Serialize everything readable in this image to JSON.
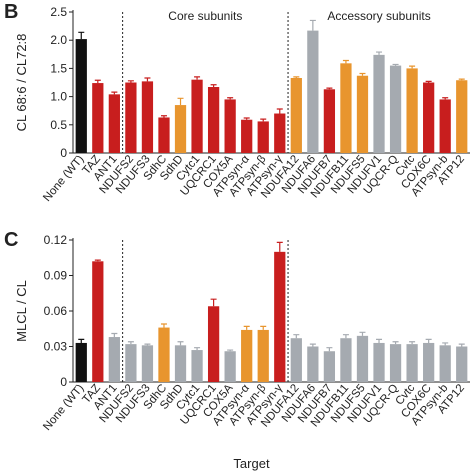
{
  "chart_data": [
    {
      "type": "bar",
      "panel": "B",
      "ylabel": "CL 68:6 / CL72:8",
      "annotations": [
        "Core subunits",
        "Accessory subunits"
      ],
      "categories": [
        "None (WT)",
        "TAZ",
        "ANT1",
        "NDUFS2",
        "NDUFS3",
        "SdhC",
        "SdhD",
        "Cytc1",
        "UQCRC1",
        "COX5A",
        "ATPsyn-α",
        "ATPsyn-β",
        "ATPsyn-γ",
        "NDUFA12",
        "NDUFA6",
        "NDUFB7",
        "NDUFB11",
        "NDUFS5",
        "NDUFV1",
        "UQCR-Q",
        "Cvtc",
        "COX6C",
        "ATPsyn-b",
        "ATP12"
      ],
      "values": [
        2.02,
        1.24,
        1.04,
        1.25,
        1.27,
        0.63,
        0.85,
        1.3,
        1.17,
        0.95,
        0.59,
        0.56,
        0.7,
        1.33,
        2.17,
        1.13,
        1.59,
        1.37,
        1.74,
        1.55,
        1.5,
        1.25,
        0.95,
        1.29
      ],
      "errors": [
        0.12,
        0.05,
        0.04,
        0.03,
        0.06,
        0.03,
        0.12,
        0.05,
        0.04,
        0.03,
        0.03,
        0.04,
        0.08,
        0.02,
        0.18,
        0.02,
        0.05,
        0.04,
        0.05,
        0.02,
        0.04,
        0.02,
        0.03,
        0.02
      ],
      "colors": [
        "#111111",
        "#c81e1e",
        "#c81e1e",
        "#c81e1e",
        "#c81e1e",
        "#c81e1e",
        "#e8952e",
        "#c81e1e",
        "#c81e1e",
        "#c81e1e",
        "#c81e1e",
        "#c81e1e",
        "#c81e1e",
        "#e8952e",
        "#a5aab0",
        "#c81e1e",
        "#e8952e",
        "#e8952e",
        "#a5aab0",
        "#a5aab0",
        "#e8952e",
        "#c81e1e",
        "#c81e1e",
        "#e8952e"
      ],
      "ylim": [
        0,
        2.5
      ],
      "yticks": [
        0,
        0.5,
        {
          "value": 1,
          "label": "1.0"
        },
        1.5,
        {
          "value": 2,
          "label": "2.0"
        },
        2.5
      ]
    },
    {
      "type": "bar",
      "panel": "C",
      "ylabel": "MLCL / CL",
      "xlabel": "Target",
      "categories": [
        "None (WT)",
        "TAZ",
        "ANT1",
        "NDUFS2",
        "NDUFS3",
        "SdhC",
        "SdhD",
        "Cytc1",
        "UQCRC1",
        "COX5A",
        "ATPsyn-α",
        "ATPsyn-β",
        "ATPsyn-γ",
        "NDUFA12",
        "NDUFA6",
        "NDUFB7",
        "NDUFB11",
        "NDUFS5",
        "NDUFV1",
        "UQCR-Q",
        "Cvtc",
        "COX6C",
        "ATPsyn-b",
        "ATP12"
      ],
      "values": [
        0.033,
        0.102,
        0.038,
        0.032,
        0.031,
        0.046,
        0.031,
        0.027,
        0.064,
        0.026,
        0.044,
        0.044,
        0.11,
        0.037,
        0.03,
        0.026,
        0.037,
        0.039,
        0.033,
        0.032,
        0.032,
        0.033,
        0.031,
        0.03
      ],
      "errors": [
        0.003,
        0.001,
        0.003,
        0.002,
        0.001,
        0.003,
        0.003,
        0.002,
        0.006,
        0.001,
        0.003,
        0.003,
        0.008,
        0.003,
        0.002,
        0.003,
        0.003,
        0.003,
        0.003,
        0.002,
        0.002,
        0.003,
        0.002,
        0.002
      ],
      "colors": [
        "#111111",
        "#c81e1e",
        "#a5aab0",
        "#a5aab0",
        "#a5aab0",
        "#e8952e",
        "#a5aab0",
        "#a5aab0",
        "#c81e1e",
        "#a5aab0",
        "#e8952e",
        "#e8952e",
        "#c81e1e",
        "#a5aab0",
        "#a5aab0",
        "#a5aab0",
        "#a5aab0",
        "#a5aab0",
        "#a5aab0",
        "#a5aab0",
        "#a5aab0",
        "#a5aab0",
        "#a5aab0",
        "#a5aab0"
      ],
      "ylim": [
        0,
        0.12
      ],
      "yticks": [
        0,
        0.03,
        0.06,
        0.09,
        0.12
      ]
    }
  ]
}
